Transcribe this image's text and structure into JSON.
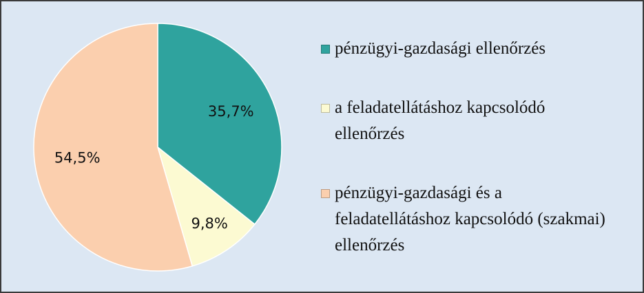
{
  "chart_data": {
    "type": "pie",
    "categories": [
      "pénzügyi-gazdasági ellenőrzés",
      "a feladatellátáshoz kapcsolódó ellenőrzés",
      "pénzügyi-gazdasági és a feladatellátáshoz kapcsolódó (szakmai) ellenőrzés"
    ],
    "values": [
      35.7,
      9.8,
      54.5
    ],
    "value_labels": [
      "35,7%",
      "9,8%",
      "54,5%"
    ],
    "colors": [
      "#2fa39e",
      "#fcfad2",
      "#fbcfae"
    ]
  }
}
